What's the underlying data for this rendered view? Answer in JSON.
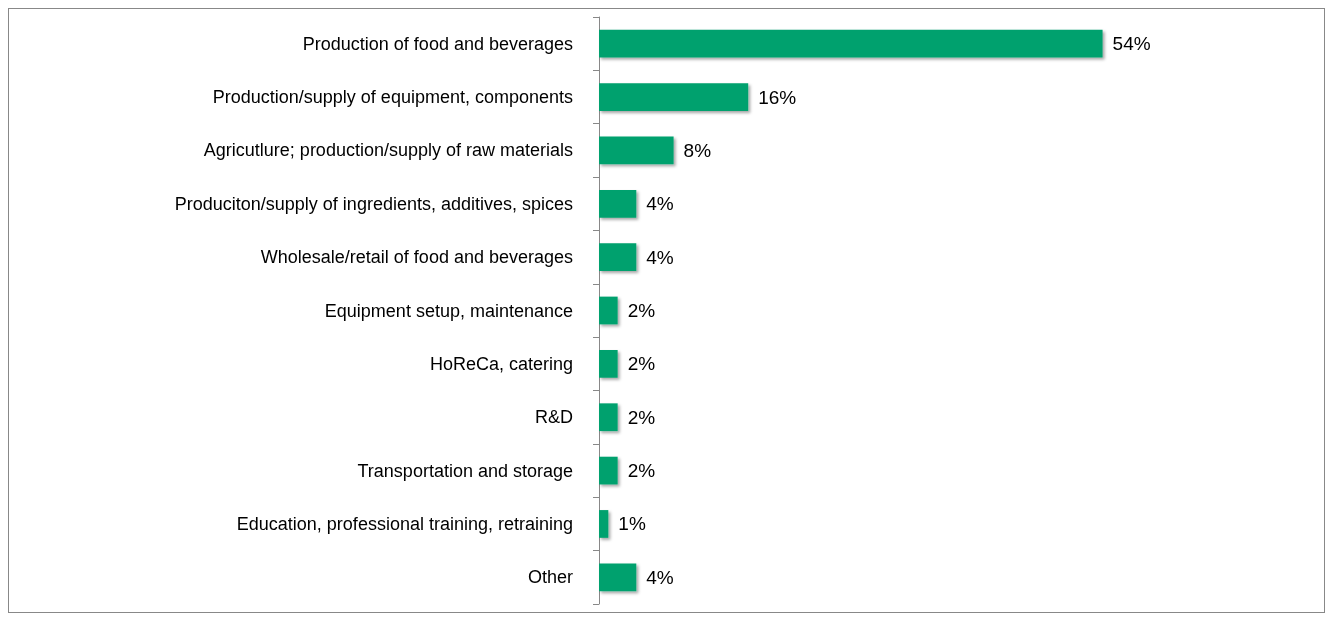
{
  "chart_data": {
    "type": "bar",
    "orientation": "horizontal",
    "categories": [
      "Production of food and beverages",
      "Production/supply of equipment, components",
      "Agricutlure; production/supply of raw materials",
      "Produciton/supply of ingredients, additives, spices",
      "Wholesale/retail of food and beverages",
      "Equipment setup, maintenance",
      "HoReCa, catering",
      "R&D",
      "Transportation and storage",
      "Education, professional training, retraining",
      "Other"
    ],
    "values": [
      54,
      16,
      8,
      4,
      4,
      2,
      2,
      2,
      2,
      1,
      4
    ],
    "value_labels": [
      "54%",
      "16%",
      "8%",
      "4%",
      "4%",
      "2%",
      "2%",
      "2%",
      "2%",
      "1%",
      "4%"
    ],
    "color": "#00a16e"
  }
}
